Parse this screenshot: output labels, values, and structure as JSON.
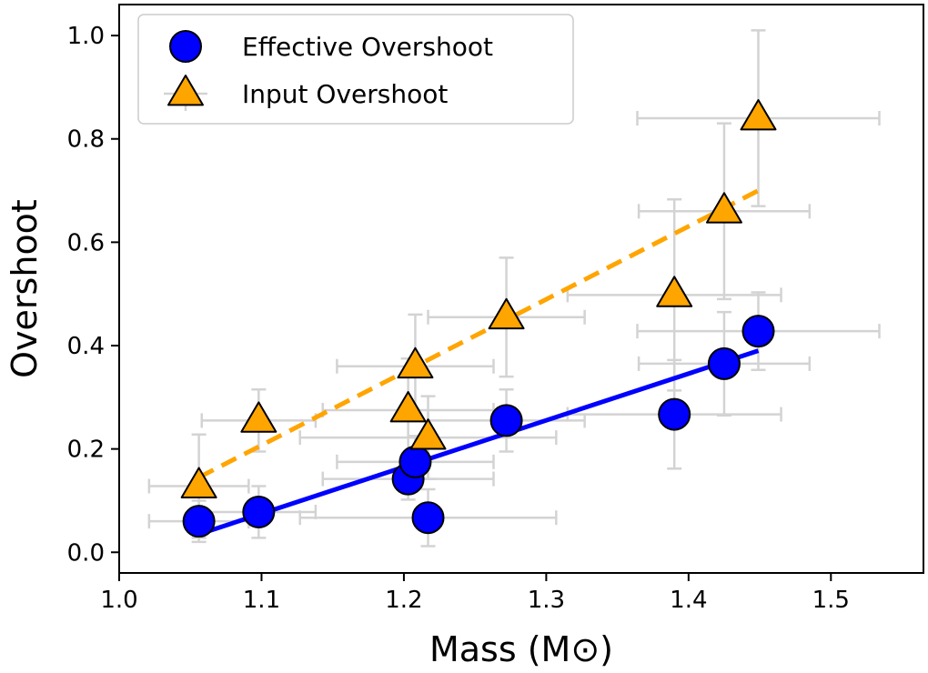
{
  "chart_data": {
    "type": "scatter",
    "xlabel": "Mass (M⊙)",
    "ylabel": "Overshoot",
    "xlim": [
      1.0,
      1.565
    ],
    "ylim": [
      -0.04,
      1.06
    ],
    "xticks": [
      "1.0",
      "1.1",
      "1.2",
      "1.3",
      "1.4",
      "1.5"
    ],
    "yticks": [
      "0.0",
      "0.2",
      "0.4",
      "0.6",
      "0.8",
      "1.0"
    ],
    "legend_position": "upper-left",
    "colors": {
      "effective": "#0000ff",
      "input": "#ffa500",
      "errorbar": "#d3d3d3",
      "marker_edge": "#000000"
    },
    "series": [
      {
        "name": "Effective Overshoot",
        "marker": "circle",
        "points": [
          {
            "x": 1.056,
            "y": 0.06,
            "xerr": 0.035,
            "yerr": 0.04
          },
          {
            "x": 1.098,
            "y": 0.078,
            "xerr": 0.04,
            "yerr": 0.05
          },
          {
            "x": 1.203,
            "y": 0.142,
            "xerr": 0.06,
            "yerr": 0.04
          },
          {
            "x": 1.208,
            "y": 0.175,
            "xerr": 0.055,
            "yerr": 0.05
          },
          {
            "x": 1.217,
            "y": 0.067,
            "xerr": 0.09,
            "yerr": 0.055
          },
          {
            "x": 1.272,
            "y": 0.255,
            "xerr": 0.055,
            "yerr": 0.06
          },
          {
            "x": 1.39,
            "y": 0.267,
            "xerr": 0.075,
            "yerr": 0.105
          },
          {
            "x": 1.425,
            "y": 0.365,
            "xerr": 0.06,
            "yerr": 0.1
          },
          {
            "x": 1.449,
            "y": 0.428,
            "xerr": 0.085,
            "yerr": 0.075
          }
        ]
      },
      {
        "name": "Input Overshoot",
        "marker": "triangle",
        "points": [
          {
            "x": 1.056,
            "y": 0.128,
            "xerr": 0.035,
            "yerr": 0.1
          },
          {
            "x": 1.098,
            "y": 0.255,
            "xerr": 0.04,
            "yerr": 0.06
          },
          {
            "x": 1.203,
            "y": 0.275,
            "xerr": 0.06,
            "yerr": 0.1
          },
          {
            "x": 1.208,
            "y": 0.36,
            "xerr": 0.055,
            "yerr": 0.1
          },
          {
            "x": 1.217,
            "y": 0.222,
            "xerr": 0.09,
            "yerr": 0.08
          },
          {
            "x": 1.272,
            "y": 0.455,
            "xerr": 0.055,
            "yerr": 0.115
          },
          {
            "x": 1.39,
            "y": 0.498,
            "xerr": 0.075,
            "yerr": 0.185
          },
          {
            "x": 1.425,
            "y": 0.66,
            "xerr": 0.06,
            "yerr": 0.17
          },
          {
            "x": 1.449,
            "y": 0.84,
            "xerr": 0.085,
            "yerr": 0.17
          }
        ]
      }
    ],
    "fit_lines": [
      {
        "name": "effective-fit",
        "style": "solid",
        "x": [
          1.056,
          1.449
        ],
        "y": [
          0.035,
          0.39
        ]
      },
      {
        "name": "input-fit",
        "style": "dashed",
        "x": [
          1.056,
          1.449
        ],
        "y": [
          0.145,
          0.7
        ]
      }
    ]
  }
}
